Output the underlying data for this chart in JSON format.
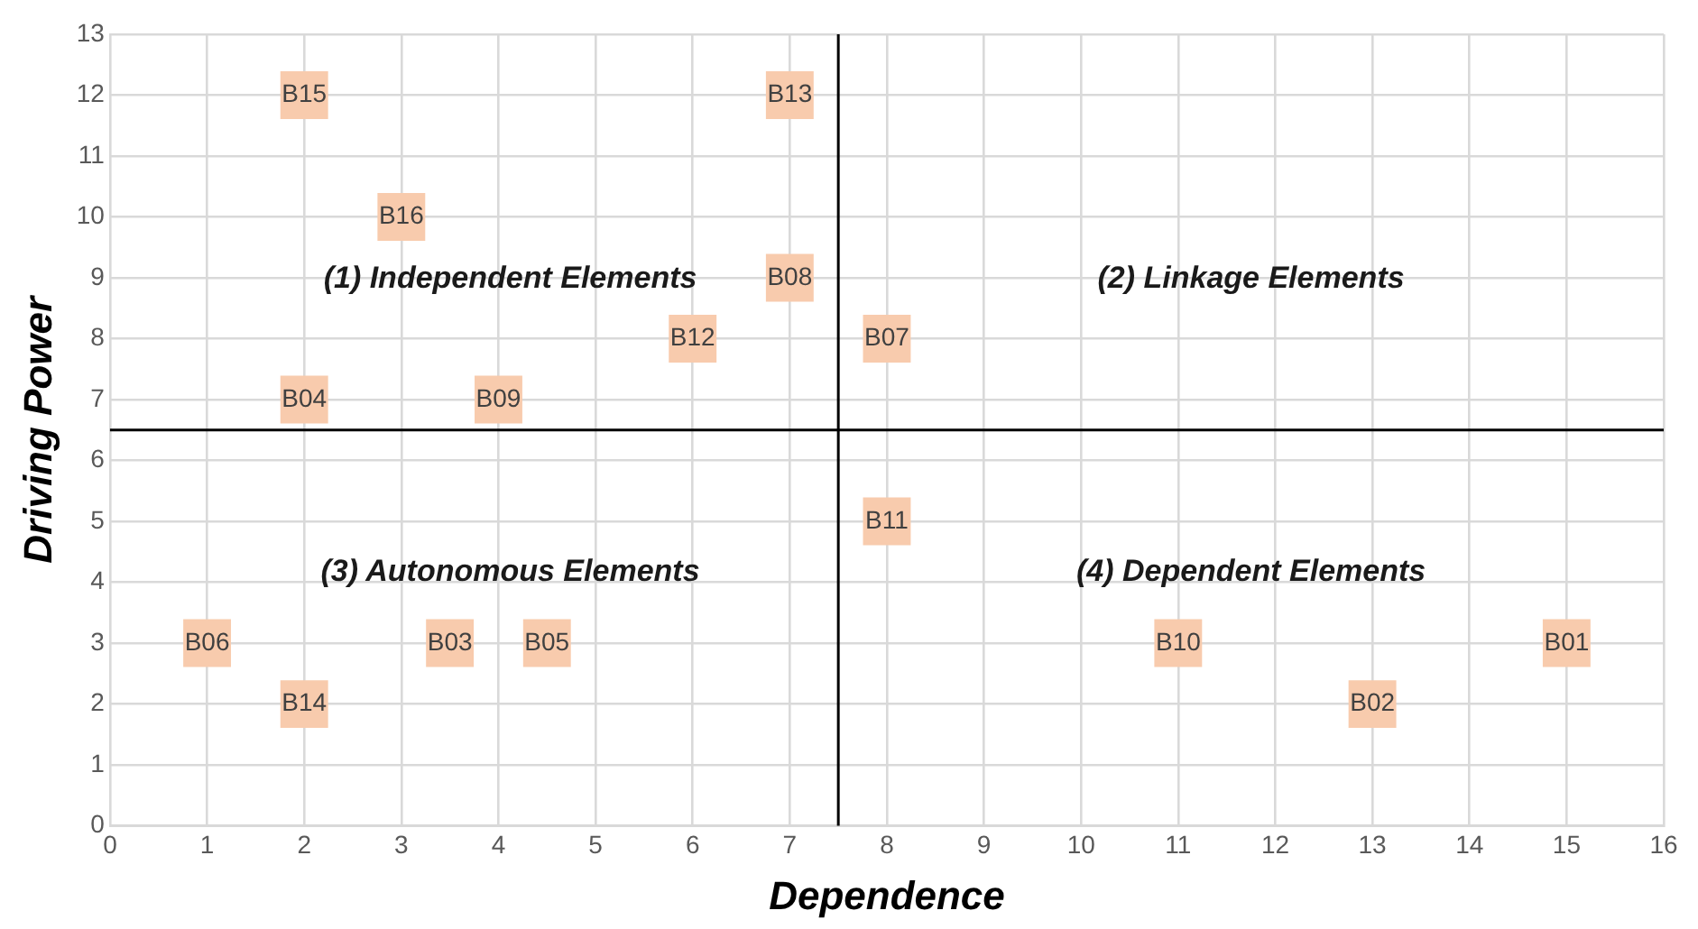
{
  "chart_data": {
    "type": "scatter",
    "xlabel": "Dependence",
    "ylabel": "Driving Power",
    "x": [
      2,
      7,
      3,
      7,
      6,
      8,
      2,
      4,
      8,
      1,
      3.5,
      4.5,
      2,
      11,
      13,
      15
    ],
    "series": [
      {
        "color": "#f8cbad",
        "values": [
          12,
          12,
          10,
          9,
          8,
          8,
          7,
          7,
          5,
          3,
          3,
          3,
          2,
          3,
          2,
          3
        ]
      }
    ],
    "marker": "square",
    "xlim": [
      0,
      16
    ],
    "xticks": [
      0,
      1,
      2,
      3,
      4,
      5,
      6,
      7,
      8,
      9,
      10,
      11,
      12,
      13,
      14,
      15,
      16
    ],
    "ylim": [
      0,
      13
    ],
    "yticks": [
      0,
      1,
      2,
      3,
      4,
      5,
      6,
      7,
      8,
      9,
      10,
      11,
      12,
      13
    ],
    "grid": true,
    "legend": false,
    "ref_lines": [
      {
        "axis": "x",
        "value": 7.5,
        "color": "#000000"
      },
      {
        "axis": "y",
        "value": 6.5,
        "color": "#000000"
      }
    ],
    "annotations": [
      {
        "text": "B15",
        "x": 2,
        "y": 12
      },
      {
        "text": "B13",
        "x": 7,
        "y": 12
      },
      {
        "text": "B16",
        "x": 3,
        "y": 10
      },
      {
        "text": "B08",
        "x": 7,
        "y": 9
      },
      {
        "text": "B12",
        "x": 6,
        "y": 8
      },
      {
        "text": "B07",
        "x": 8,
        "y": 8
      },
      {
        "text": "B04",
        "x": 2,
        "y": 7
      },
      {
        "text": "B09",
        "x": 4,
        "y": 7
      },
      {
        "text": "B11",
        "x": 8,
        "y": 5
      },
      {
        "text": "B06",
        "x": 1,
        "y": 3
      },
      {
        "text": "B03",
        "x": 3.5,
        "y": 3
      },
      {
        "text": "B05",
        "x": 4.5,
        "y": 3
      },
      {
        "text": "B14",
        "x": 2,
        "y": 2
      },
      {
        "text": "B10",
        "x": 11,
        "y": 3
      },
      {
        "text": "B02",
        "x": 13,
        "y": 2
      },
      {
        "text": "B01",
        "x": 15,
        "y": 3
      },
      "(1) Independent Elements",
      "(2) Linkage Elements",
      "(3) Autonomous Elements",
      "(4) Dependent Elements"
    ]
  }
}
